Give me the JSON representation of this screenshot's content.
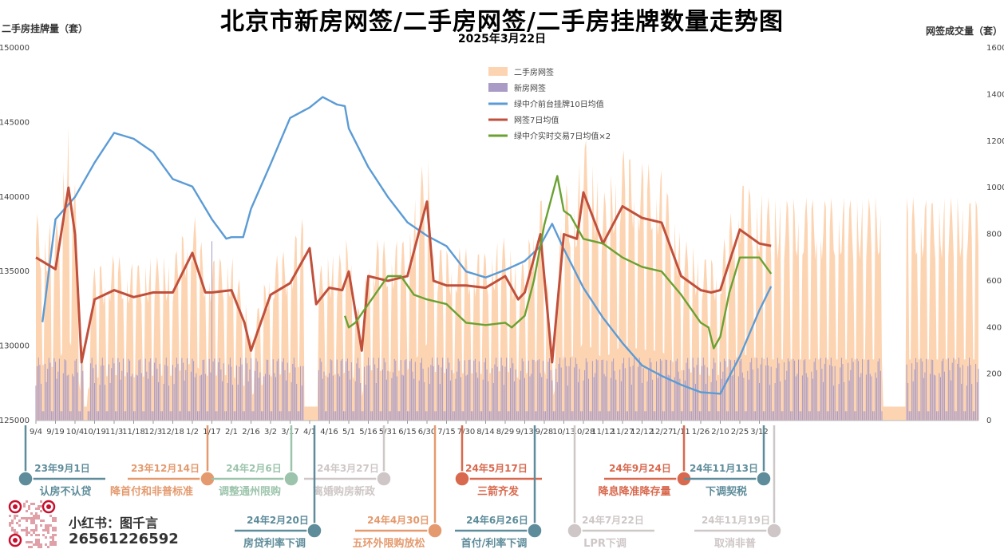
{
  "title": "北京市新房网签/二手房网签/二手房挂牌数量走势图",
  "subtitle": "2025年3月22日",
  "ylabel_left": "二手房挂牌量（套）",
  "ylabel_right": "网签成交量（套）",
  "brand": {
    "name": "小红书：图千言",
    "phone": "26561226592"
  },
  "colors": {
    "secondhand_sign": "#fdd4b2",
    "new_sign": "#a99bc6",
    "listing": "#5b9bd5",
    "sign7": "#c0503c",
    "zhongjie": "#6aa132"
  },
  "chart_data": {
    "type": "area",
    "x_tick_labels": [
      "9/4",
      "9/19",
      "10/4",
      "10/19",
      "11/3",
      "11/18",
      "12/3",
      "12/18",
      "1/2",
      "1/17",
      "2/1",
      "2/16",
      "3/2",
      "3/17",
      "4/1",
      "4/16",
      "5/1",
      "5/16",
      "5/31",
      "6/15",
      "6/30",
      "7/15",
      "7/30",
      "8/14",
      "8/29",
      "9/13",
      "9/28",
      "10/13",
      "10/28",
      "11/12",
      "11/27",
      "12/12",
      "12/27",
      "1/11",
      "1/26",
      "2/10",
      "2/25",
      "3/12"
    ],
    "y_left": {
      "min": 125000,
      "max": 150000,
      "ticks": [
        "125000",
        "130000",
        "135000",
        "140000",
        "145000",
        "150000"
      ]
    },
    "y_right": {
      "min": 0,
      "max": 1600,
      "ticks": [
        "0",
        "200",
        "400",
        "600",
        "800",
        "1000",
        "1200",
        "1400",
        "1600"
      ]
    },
    "legend": [
      "二手房网签",
      "新房网签",
      "绿中介前台挂牌10日均值",
      "网签7日均值",
      "绿中介实时交易7日均值×2"
    ],
    "legend_position": "top-center",
    "series": [
      {
        "name": "绿中介前台挂牌10日均值",
        "axis": "left",
        "x": [
          "9/9",
          "9/19",
          "10/4",
          "10/19",
          "11/3",
          "11/18",
          "12/3",
          "12/18",
          "1/2",
          "1/17",
          "1/28",
          "2/1",
          "2/10",
          "2/16",
          "3/2",
          "3/17",
          "4/1",
          "4/11",
          "4/22",
          "4/28",
          "5/1",
          "5/16",
          "5/31",
          "6/15",
          "6/30",
          "7/15",
          "7/30",
          "8/14",
          "8/29",
          "9/13",
          "9/24",
          "10/4",
          "10/13",
          "10/28",
          "11/12",
          "11/27",
          "12/12",
          "12/27",
          "1/11",
          "1/26",
          "2/10",
          "2/25",
          "3/12",
          "3/21"
        ],
        "values": [
          131600,
          138500,
          140000,
          142300,
          144300,
          143900,
          143000,
          141200,
          140700,
          138500,
          137200,
          137300,
          137300,
          139200,
          142200,
          145300,
          146000,
          146700,
          146200,
          146100,
          144600,
          142000,
          140000,
          138300,
          137400,
          136700,
          135000,
          134600,
          135100,
          135700,
          136600,
          138200,
          136500,
          133900,
          131900,
          130200,
          128700,
          128000,
          127400,
          126900,
          126800,
          129300,
          132400,
          134000
        ]
      },
      {
        "name": "网签7日均值",
        "axis": "right",
        "x": [
          "9/4",
          "9/19",
          "9/29",
          "10/4",
          "10/9",
          "10/19",
          "11/3",
          "11/18",
          "12/3",
          "12/18",
          "1/2",
          "1/12",
          "1/17",
          "2/1",
          "2/11",
          "2/16",
          "3/2",
          "3/17",
          "4/1",
          "4/6",
          "4/16",
          "4/26",
          "5/1",
          "5/11",
          "5/16",
          "5/31",
          "6/15",
          "6/30",
          "7/5",
          "7/15",
          "7/30",
          "8/14",
          "8/29",
          "9/8",
          "9/13",
          "9/25",
          "10/4",
          "10/13",
          "10/23",
          "10/28",
          "11/12",
          "11/27",
          "12/12",
          "12/27",
          "1/11",
          "1/26",
          "2/3",
          "2/10",
          "2/25",
          "3/12",
          "3/21"
        ],
        "values": [
          700,
          650,
          1000,
          800,
          250,
          520,
          560,
          530,
          550,
          550,
          720,
          550,
          550,
          560,
          420,
          300,
          540,
          590,
          740,
          500,
          570,
          560,
          640,
          300,
          620,
          600,
          620,
          940,
          600,
          580,
          580,
          570,
          620,
          520,
          550,
          800,
          250,
          800,
          780,
          980,
          760,
          920,
          870,
          850,
          620,
          560,
          550,
          560,
          820,
          760,
          750
        ]
      },
      {
        "name": "绿中介实时交易7日均值×2",
        "axis": "right",
        "x": [
          "4/28",
          "5/1",
          "5/6",
          "5/16",
          "5/31",
          "6/10",
          "6/20",
          "6/30",
          "7/15",
          "7/30",
          "8/14",
          "8/29",
          "9/3",
          "9/13",
          "9/20",
          "9/28",
          "10/8",
          "10/13",
          "10/18",
          "10/28",
          "11/12",
          "11/27",
          "12/12",
          "12/27",
          "1/11",
          "1/26",
          "2/1",
          "2/5",
          "2/10",
          "2/17",
          "2/25",
          "3/12",
          "3/21"
        ],
        "values": [
          450,
          400,
          420,
          500,
          620,
          620,
          540,
          520,
          500,
          420,
          410,
          420,
          400,
          450,
          600,
          840,
          1050,
          900,
          880,
          780,
          760,
          700,
          660,
          640,
          540,
          420,
          400,
          310,
          360,
          550,
          700,
          700,
          630
        ]
      }
    ],
    "bars": [
      {
        "name": "二手房网签",
        "axis": "right",
        "kind": "area",
        "approx_weekday_peak": 800,
        "approx_weekend_low": 150
      },
      {
        "name": "新房网签",
        "axis": "right",
        "kind": "bar",
        "approx_typical": 200,
        "peak": {
          "x": "1/17",
          "value": 770
        }
      }
    ]
  },
  "events": [
    {
      "date": "23年9月1日",
      "label": "认房不认贷",
      "color": "#5e8c9a"
    },
    {
      "date": "23年12月14日",
      "label": "降首付和非普标准",
      "color": "#e49a6e"
    },
    {
      "date": "24年2月6日",
      "label": "调整通州限购",
      "color": "#9cc4ac"
    },
    {
      "date": "24年3月27日",
      "label": "离婚购房新政",
      "color": "#cfc7c7"
    },
    {
      "date": "24年2月20日",
      "label": "房贷利率下调",
      "color": "#5e8c9a"
    },
    {
      "date": "24年4月30日",
      "label": "五环外限购放松",
      "color": "#e49a6e"
    },
    {
      "date": "24年5月17日",
      "label": "三箭齐发",
      "color": "#d8694e"
    },
    {
      "date": "24年6月26日",
      "label": "首付/利率下调",
      "color": "#5e8c9a"
    },
    {
      "date": "24年7月22日",
      "label": "LPR下调",
      "color": "#cfc7c7"
    },
    {
      "date": "24年9月24日",
      "label": "降息降准降存量",
      "color": "#d8694e"
    },
    {
      "date": "24年11月13日",
      "label": "下调契税",
      "color": "#5e8c9a"
    },
    {
      "date": "24年11月19日",
      "label": "取消非普",
      "color": "#cfc7c7"
    }
  ]
}
